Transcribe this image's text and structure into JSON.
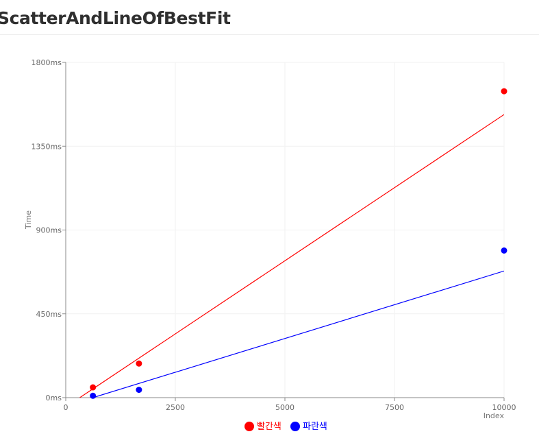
{
  "page": {
    "title": "ScatterAndLineOfBestFit"
  },
  "chart_data": {
    "type": "scatter",
    "title": "ScatterAndLineOfBestFit",
    "xlabel": "Index",
    "ylabel": "Time",
    "xlim": [
      0,
      10000
    ],
    "ylim": [
      0,
      1800
    ],
    "x_ticks": [
      0,
      2500,
      5000,
      7500,
      10000
    ],
    "x_tick_labels": [
      "0",
      "2500",
      "5000",
      "7500",
      "10000"
    ],
    "y_ticks": [
      0,
      450,
      900,
      1350,
      1800
    ],
    "y_tick_labels": [
      "0ms",
      "450ms",
      "900ms",
      "1350ms",
      "1800ms"
    ],
    "grid": true,
    "legend_position": "bottom-center",
    "series": [
      {
        "name": "빨간색",
        "color": "#ff0000",
        "points": [
          {
            "x": 620,
            "y": 55
          },
          {
            "x": 1670,
            "y": 183
          },
          {
            "x": 10000,
            "y": 1645
          }
        ],
        "fit_line": [
          {
            "x": 320,
            "y": 0
          },
          {
            "x": 10000,
            "y": 1520
          }
        ]
      },
      {
        "name": "파란색",
        "color": "#0000ff",
        "points": [
          {
            "x": 620,
            "y": 10
          },
          {
            "x": 1670,
            "y": 42
          },
          {
            "x": 10000,
            "y": 790
          }
        ],
        "fit_line": [
          {
            "x": 620,
            "y": 0
          },
          {
            "x": 10000,
            "y": 680
          }
        ]
      }
    ]
  }
}
